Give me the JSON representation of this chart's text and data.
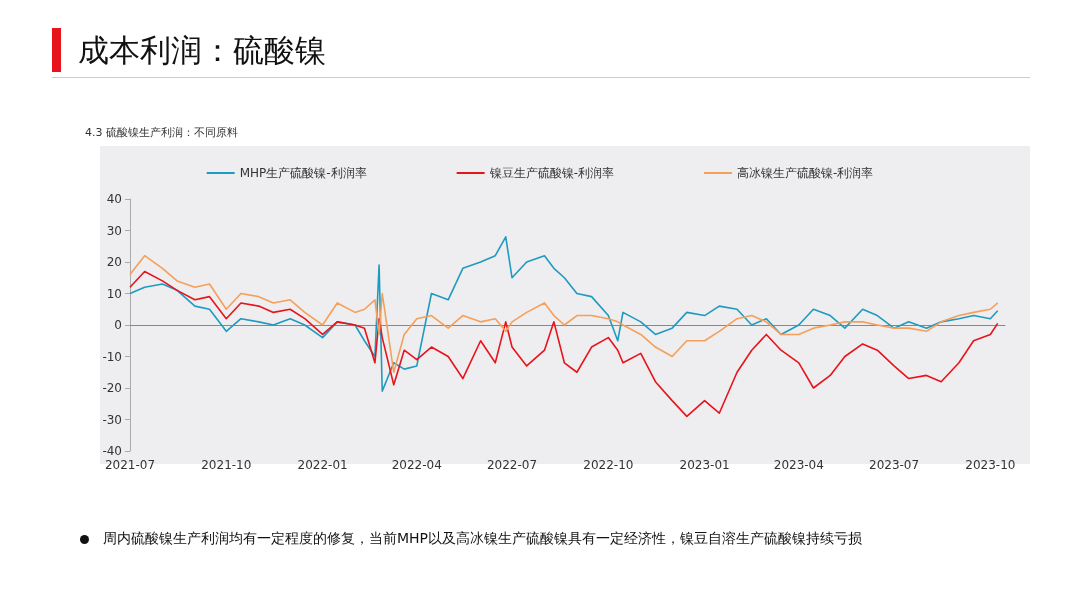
{
  "chart_data": {
    "type": "line",
    "title": "成本利润：硫酸镍",
    "subtitle": "4.3 硫酸镍生产利润：不同原料",
    "annotations": [
      "周内硫酸镍生产利润均有一定程度的修复，当前MHP以及高冰镍生产硫酸镍具有一定经济性，镍豆自溶生产硫酸镍持续亏损"
    ],
    "x": [
      "2021-07-01",
      "2021-07-15",
      "2021-08-01",
      "2021-08-15",
      "2021-09-01",
      "2021-09-15",
      "2021-10-01",
      "2021-10-15",
      "2021-11-01",
      "2021-11-15",
      "2021-12-01",
      "2021-12-15",
      "2022-01-01",
      "2022-01-15",
      "2022-02-01",
      "2022-02-10",
      "2022-02-20",
      "2022-02-24",
      "2022-02-27",
      "2022-03-10",
      "2022-03-20",
      "2022-04-01",
      "2022-04-15",
      "2022-05-01",
      "2022-05-15",
      "2022-06-01",
      "2022-06-15",
      "2022-06-25",
      "2022-07-01",
      "2022-07-15",
      "2022-08-01",
      "2022-08-10",
      "2022-08-20",
      "2022-09-01",
      "2022-09-15",
      "2022-10-01",
      "2022-10-10",
      "2022-10-15",
      "2022-11-01",
      "2022-11-15",
      "2022-12-01",
      "2022-12-15",
      "2023-01-01",
      "2023-01-15",
      "2023-02-01",
      "2023-02-15",
      "2023-03-01",
      "2023-03-15",
      "2023-04-01",
      "2023-04-15",
      "2023-05-01",
      "2023-05-15",
      "2023-06-01",
      "2023-06-15",
      "2023-07-01",
      "2023-07-15",
      "2023-08-01",
      "2023-08-15",
      "2023-09-01",
      "2023-09-15",
      "2023-10-01",
      "2023-10-08"
    ],
    "series": [
      {
        "name": "MHP生产硫酸镍-利润率",
        "color": "#1f9bbf",
        "values": [
          10,
          12,
          13,
          11,
          6,
          5,
          -2,
          2,
          1,
          0,
          2,
          0,
          -4,
          1,
          0,
          -5,
          -10,
          19,
          -21,
          -12,
          -14,
          -13,
          10,
          8,
          18,
          20,
          22,
          28,
          15,
          20,
          22,
          18,
          15,
          10,
          9,
          3,
          -5,
          4,
          1,
          -3,
          -1,
          4,
          3,
          6,
          5,
          0,
          2,
          -3,
          0,
          5,
          3,
          -1,
          5,
          3,
          -1,
          1,
          -1,
          1,
          2,
          3,
          2,
          4.5
        ]
      },
      {
        "name": "镍豆生产硫酸镍-利润率",
        "color": "#e8141c",
        "values": [
          12,
          17,
          14,
          11,
          8,
          9,
          2,
          7,
          6,
          4,
          5,
          2,
          -3,
          1,
          0,
          -1,
          -12,
          2,
          -4,
          -19,
          -8,
          -11,
          -7,
          -10,
          -17,
          -5,
          -12,
          1,
          -7,
          -13,
          -8,
          1,
          -12,
          -15,
          -7,
          -4,
          -8,
          -12,
          -9,
          -18,
          -24,
          -29,
          -24,
          -28,
          -15,
          -8,
          -3,
          -8,
          -12,
          -20,
          -16,
          -10,
          -6,
          -8,
          -13,
          -17,
          -16,
          -18,
          -12,
          -5,
          -3,
          0.5
        ]
      },
      {
        "name": "高冰镍生产硫酸镍-利润率",
        "color": "#f5a05a",
        "values": [
          16,
          22,
          18,
          14,
          12,
          13,
          5,
          10,
          9,
          7,
          8,
          4,
          0,
          7,
          4,
          5,
          8,
          -3,
          10,
          -15,
          -3,
          2,
          3,
          -1,
          3,
          1,
          2,
          -2,
          1,
          4,
          7,
          3,
          0,
          3,
          3,
          2,
          1,
          0,
          -3,
          -7,
          -10,
          -5,
          -5,
          -2,
          2,
          3,
          1,
          -3,
          -3,
          -1,
          0,
          1,
          1,
          0,
          -1,
          -1,
          -2,
          1,
          3,
          4,
          5,
          7
        ]
      }
    ],
    "xlim": [
      "2021-07-01",
      "2023-10-15"
    ],
    "xticks": [
      "2021-07",
      "2021-10",
      "2022-01",
      "2022-04",
      "2022-07",
      "2022-10",
      "2023-01",
      "2023-04",
      "2023-07",
      "2023-10"
    ],
    "ylim": [
      -40,
      40
    ],
    "yticks": [
      -40,
      -30,
      -20,
      -10,
      0,
      10,
      20,
      30,
      40
    ],
    "legend": "top",
    "marker": "none",
    "line_style": "solid"
  }
}
